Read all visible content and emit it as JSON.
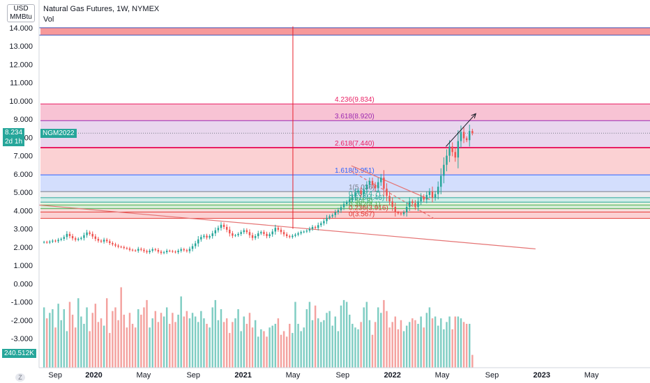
{
  "header": {
    "title": "Natural Gas Futures, 1W, NYMEX",
    "subtitle": "Vol",
    "currency": "USD",
    "unit": "MMBtu",
    "corner_badge": "Z"
  },
  "price_tag": {
    "value": "8.234",
    "symbol": "NGM2022",
    "countdown": "2d 1h",
    "price": 8.234,
    "color": "#26a69a"
  },
  "volume_tag": {
    "value": "240.512K",
    "color": "#26a69a"
  },
  "colors": {
    "up": "#26a69a",
    "down": "#ef5350",
    "vol_up": "#7fcdc3",
    "vol_down": "#f4a29f",
    "trend": "#e57373",
    "axis_line": "#e8202a"
  },
  "chart_data": {
    "type": "candlestick",
    "title": "Natural Gas Futures, 1W, NYMEX",
    "y_ticks": [
      "14.000",
      "13.000",
      "12.000",
      "11.000",
      "10.000",
      "9.000",
      "8.000",
      "7.000",
      "6.000",
      "5.000",
      "4.000",
      "3.000",
      "2.000",
      "1.000",
      "0.000",
      "-1.000",
      "-2.000",
      "-3.000"
    ],
    "y_tick_values": [
      14,
      13,
      12,
      11,
      10,
      9,
      8,
      7,
      6,
      5,
      4,
      3,
      2,
      1,
      0,
      -1,
      -2,
      -3
    ],
    "ylim": [
      -4.6,
      14.3
    ],
    "x_ticks": [
      {
        "label": "Sep",
        "t": -3.1
      },
      {
        "label": "2020",
        "t": 0
      },
      {
        "label": "May",
        "t": 4
      },
      {
        "label": "Sep",
        "t": 8
      },
      {
        "label": "2021",
        "t": 12
      },
      {
        "label": "May",
        "t": 16
      },
      {
        "label": "Sep",
        "t": 20
      },
      {
        "label": "2022",
        "t": 24
      },
      {
        "label": "May",
        "t": 28
      },
      {
        "label": "Sep",
        "t": 32
      },
      {
        "label": "2023",
        "t": 36
      },
      {
        "label": "May",
        "t": 40
      }
    ],
    "xlim": [
      -4.4,
      44.7
    ],
    "x_unit": "months since Jan 2020",
    "close": [
      2.28,
      2.25,
      2.3,
      2.35,
      2.32,
      2.4,
      2.45,
      2.55,
      2.72,
      2.6,
      2.48,
      2.4,
      2.45,
      2.5,
      2.65,
      2.8,
      2.72,
      2.58,
      2.45,
      2.35,
      2.3,
      2.4,
      2.32,
      2.22,
      2.15,
      2.08,
      2.02,
      2.0,
      1.95,
      1.92,
      1.85,
      1.82,
      1.8,
      1.9,
      1.85,
      1.78,
      1.72,
      1.8,
      1.88,
      1.84,
      1.75,
      1.68,
      1.72,
      1.8,
      1.78,
      1.75,
      1.72,
      1.8,
      1.88,
      1.83,
      1.78,
      1.9,
      2.05,
      2.2,
      2.42,
      2.55,
      2.62,
      2.52,
      2.6,
      2.75,
      2.92,
      3.05,
      3.22,
      3.1,
      2.95,
      2.75,
      2.62,
      2.65,
      2.72,
      2.82,
      2.92,
      2.82,
      2.65,
      2.5,
      2.6,
      2.75,
      2.82,
      2.72,
      2.6,
      2.7,
      2.85,
      3.05,
      2.95,
      2.82,
      2.7,
      2.6,
      2.55,
      2.62,
      2.68,
      2.75,
      2.82,
      2.85,
      2.9,
      3.0,
      3.1,
      3.05,
      3.2,
      3.3,
      3.42,
      3.6,
      3.68,
      3.75,
      3.9,
      4.02,
      4.18,
      4.35,
      4.45,
      4.6,
      4.75,
      5.0,
      5.1,
      4.9,
      5.15,
      5.4,
      5.62,
      5.4,
      5.22,
      5.55,
      5.8,
      5.2,
      4.8,
      4.5,
      4.2,
      3.9,
      3.85,
      3.8,
      3.9,
      4.2,
      4.5,
      4.4,
      4.2,
      4.5,
      4.75,
      4.6,
      4.85,
      5.05,
      4.7,
      4.9,
      5.3,
      5.9,
      6.5,
      7.0,
      7.5,
      7.2,
      6.9,
      7.8,
      8.3,
      7.95,
      7.85,
      8.35,
      8.234
    ],
    "volume": [
      -1.3,
      -1.9,
      -1.6,
      -1.4,
      -2.4,
      -1.1,
      -2.0,
      -1.4,
      -2.6,
      -1.0,
      -1.7,
      -2.4,
      -0.8,
      -1.8,
      -2.2,
      -1.3,
      -2.6,
      -1.6,
      -1.1,
      -2.1,
      -1.9,
      -2.3,
      -0.8,
      -2.7,
      -1.5,
      -1.3,
      -2.0,
      -0.2,
      -1.7,
      -2.4,
      -1.6,
      -2.2,
      -2.4,
      -1.4,
      -1.7,
      -1.3,
      -0.9,
      -2.4,
      -1.9,
      -1.5,
      -2.1,
      -1.6,
      -1.8,
      -1.3,
      -2.2,
      -1.6,
      -2.1,
      -1.7,
      -0.7,
      -1.8,
      -1.5,
      -1.9,
      -1.6,
      -1.8,
      -2.1,
      -1.5,
      -1.9,
      -2.2,
      -2.4,
      -1.3,
      -0.9,
      -2.0,
      -1.4,
      -2.1,
      -1.9,
      -2.7,
      -2.1,
      -1.9,
      -1.4,
      -2.6,
      -1.8,
      -2.2,
      -1.6,
      -2.4,
      -2.0,
      -2.9,
      -2.5,
      -2.6,
      -2.9,
      -2.4,
      -2.3,
      -2.2,
      -1.9,
      -2.8,
      -2.6,
      -2.9,
      -2.2,
      -2.7,
      -1.0,
      -2.2,
      -2.6,
      -2.4,
      -1.4,
      -1.0,
      -2.0,
      -1.2,
      -1.9,
      -2.1,
      -2.0,
      -1.6,
      -1.5,
      -2.3,
      -1.8,
      -2.6,
      -1.2,
      -0.9,
      -1.0,
      -1.7,
      -2.2,
      -2.4,
      -2.5,
      -2.1,
      -1.3,
      -1.0,
      -2.0,
      -2.8,
      -2.1,
      -1.3,
      -1.6,
      -0.9,
      -1.5,
      -2.4,
      -2.1,
      -1.8,
      -2.5,
      -2.0,
      -2.6,
      -2.3,
      -2.1,
      -1.9,
      -2.0,
      -2.2,
      -1.8,
      -2.4,
      -1.6,
      -1.3,
      -1.9,
      -1.8,
      -2.3,
      -1.9,
      -2.5,
      -2.1,
      -1.8,
      -2.5,
      -1.8,
      -1.8,
      -1.9,
      -2.1,
      -2.2,
      -2.2,
      -3.9
    ],
    "candle_t0": -4.0,
    "candle_step": 0.2295,
    "fib_levels": [
      {
        "label": "4.236(9.834)",
        "value": 9.834,
        "color": "#e91e63"
      },
      {
        "label": "3.618(8.920)",
        "value": 8.92,
        "color": "#9c27b0"
      },
      {
        "label": "2.618(7.440)",
        "value": 7.44,
        "color": "#e91e63"
      },
      {
        "label": "1.618(5.951)",
        "value": 5.951,
        "color": "#2962ff"
      },
      {
        "label": "1(5.036)",
        "value": 5.036,
        "color": "#787b86"
      },
      {
        "label": "0.786(4.7)",
        "value": 4.7,
        "color": "#26a69a"
      },
      {
        "label": "0.618(4.46)",
        "value": 4.46,
        "color": "#26a69a"
      },
      {
        "label": "0.5(4.3)",
        "value": 4.3,
        "color": "#4caf50"
      },
      {
        "label": "0.382(4.1)",
        "value": 4.1,
        "color": "#4caf50"
      },
      {
        "label": "0.236(3.916)",
        "value": 3.916,
        "color": "#e53935"
      },
      {
        "label": "0(3.567)",
        "value": 3.567,
        "color": "#e53935"
      }
    ],
    "zones": [
      {
        "from": 13.6,
        "to": 14.0,
        "color": "#f7999a",
        "opacity": 1.0
      },
      {
        "from": 8.92,
        "to": 9.834,
        "color": "#f8c3d4",
        "opacity": 1.0
      },
      {
        "from": 7.44,
        "to": 8.92,
        "color": "#e9d7ee",
        "opacity": 1.0
      },
      {
        "from": 5.951,
        "to": 7.44,
        "color": "#fbd1d3",
        "opacity": 1.0
      },
      {
        "from": 5.036,
        "to": 5.951,
        "color": "#d3defd",
        "opacity": 1.0
      },
      {
        "from": 4.7,
        "to": 5.036,
        "color": "#ececef",
        "opacity": 1.0
      },
      {
        "from": 4.46,
        "to": 4.7,
        "color": "#d2eee9",
        "opacity": 1.0
      },
      {
        "from": 4.3,
        "to": 4.46,
        "color": "#e7f3e0",
        "opacity": 1.0
      },
      {
        "from": 4.1,
        "to": 4.3,
        "color": "#d5ecd6",
        "opacity": 1.0
      },
      {
        "from": 3.916,
        "to": 4.1,
        "color": "#f8dcdc",
        "opacity": 1.0
      },
      {
        "from": 3.567,
        "to": 3.916,
        "color": "#fbd1d3",
        "opacity": 1.0
      }
    ],
    "trendlines": [
      {
        "from": [
          -4.4,
          4.3
        ],
        "to": [
          35.5,
          1.9
        ],
        "color": "#e57373",
        "dashed": false
      },
      {
        "from": [
          20.7,
          6.45
        ],
        "to": [
          27.0,
          4.6
        ],
        "color": "#e57373",
        "dashed": false
      },
      {
        "from": [
          20.7,
          6.15
        ],
        "to": [
          27.5,
          3.5
        ],
        "color": "#e57373",
        "dashed": true
      }
    ],
    "vertical_marker_t": 16.0,
    "projection": {
      "from": [
        28.3,
        7.5
      ],
      "to": [
        30.7,
        9.3
      ],
      "color": "#131722"
    },
    "grid": false
  }
}
